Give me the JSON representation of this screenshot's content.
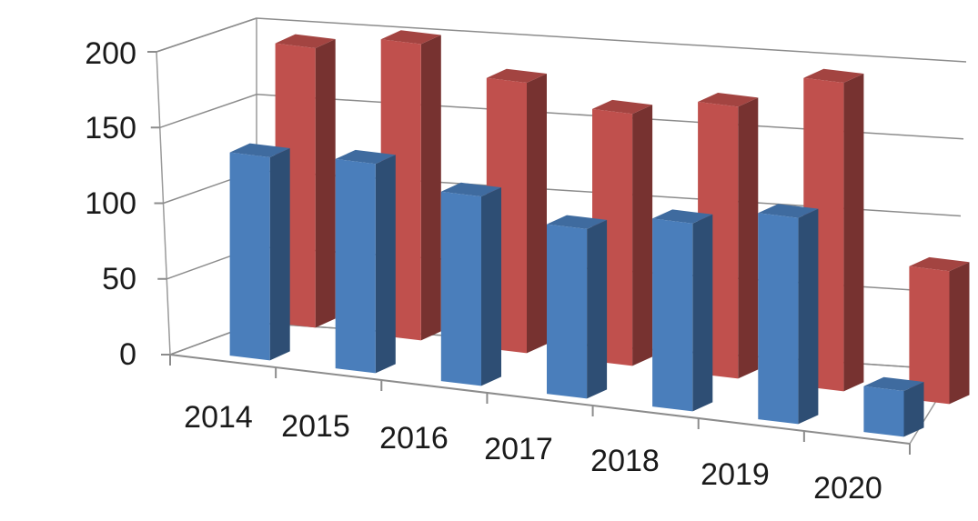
{
  "chart_data": {
    "type": "bar",
    "view": "3d-clustered-column",
    "categories": [
      "2014",
      "2015",
      "2016",
      "2017",
      "2018",
      "2019",
      "2020"
    ],
    "y_ticks": [
      "0",
      "50",
      "100",
      "150",
      "200"
    ],
    "ylim": [
      0,
      200
    ],
    "grid": true,
    "legend": "none",
    "series": [
      {
        "color": "#4a7ebb",
        "values": [
          133,
          137,
          124,
          111,
          123,
          135,
          30
        ]
      },
      {
        "color": "#c0504d",
        "values": [
          183,
          194,
          177,
          165,
          178,
          202,
          87
        ]
      }
    ],
    "title": "",
    "xlabel": "",
    "ylabel": ""
  }
}
